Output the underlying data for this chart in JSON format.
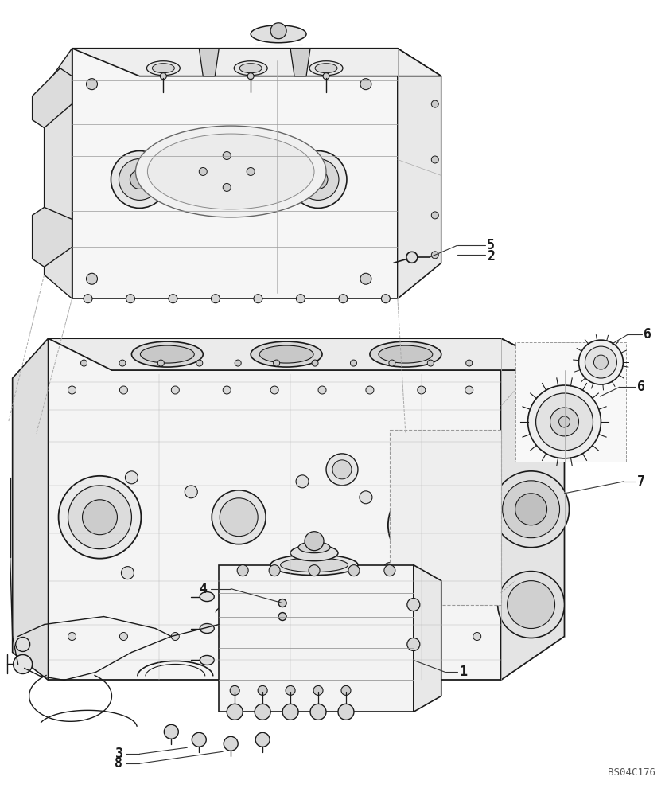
{
  "bg_color": "#ffffff",
  "line_color": "#1a1a1a",
  "ref_code": "BS04C176",
  "fig_width": 8.36,
  "fig_height": 10.0,
  "dpi": 100
}
